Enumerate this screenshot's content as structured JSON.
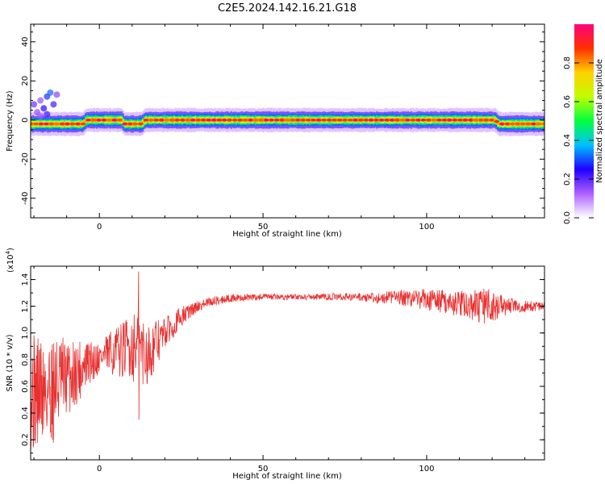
{
  "figure": {
    "title": "C2E5.2024.142.16.21.G18"
  },
  "chart_data": [
    {
      "type": "heatmap",
      "xlabel": "Height of straight line (km)",
      "ylabel": "Frequency (Hz)",
      "xlim": [
        -21,
        136
      ],
      "ylim": [
        -50,
        49
      ],
      "xticks": [
        0,
        50,
        100
      ],
      "yticks": [
        -40,
        -20,
        0,
        20,
        40
      ],
      "grid": false,
      "colorbar": {
        "label": "Normalized spectral amplitude",
        "range": [
          0,
          1
        ],
        "ticks": [
          "0.0",
          "0.2",
          "0.4",
          "0.6",
          "0.8"
        ],
        "colormap": [
          "#ffffff",
          "#b060ff",
          "#2000ff",
          "#00c0ff",
          "#00ff40",
          "#c0ff00",
          "#ffd000",
          "#ff3000",
          "#ff0080"
        ]
      },
      "ridge": {
        "description_frequency_hz_vs_height_km": [
          [
            -21,
            -2
          ],
          [
            -5,
            -2
          ],
          [
            -4,
            0
          ],
          [
            7,
            0
          ],
          [
            7.5,
            -2
          ],
          [
            13,
            -2
          ],
          [
            14,
            0
          ],
          [
            121,
            0
          ],
          [
            122,
            -2
          ],
          [
            136,
            -2
          ]
        ],
        "peak_amplitude": 1.0
      },
      "scatter_blob": [
        [
          -20,
          8
        ],
        [
          -19,
          4
        ],
        [
          -18,
          10
        ],
        [
          -17,
          6
        ],
        [
          -16,
          12
        ],
        [
          -15,
          14
        ],
        [
          -14,
          8
        ],
        [
          -13,
          13
        ],
        [
          -18,
          2
        ],
        [
          -16,
          3
        ]
      ]
    },
    {
      "type": "line",
      "xlabel": "Height of straight line (km)",
      "ylabel": "SNR (10 * v/v)",
      "multiplier": "(x10",
      "multiplier_exp": "4",
      "multiplier_close": ")",
      "xlim": [
        -21,
        136
      ],
      "ylim": [
        0.05,
        1.5
      ],
      "xticks": [
        0,
        50,
        100
      ],
      "yticks": [
        0.2,
        0.4,
        0.6,
        0.8,
        1.0,
        1.2,
        1.4
      ],
      "ytick_labels": [
        "0.2",
        "0.4",
        "0.6",
        "0.8",
        "1.0",
        "1.2",
        "1.4"
      ],
      "color": "#e83030",
      "grid": false,
      "trend": [
        [
          -21,
          0.55
        ],
        [
          -15,
          0.58
        ],
        [
          -10,
          0.66
        ],
        [
          -5,
          0.74
        ],
        [
          0,
          0.82
        ],
        [
          5,
          0.86
        ],
        [
          10,
          0.9
        ],
        [
          15,
          0.85
        ],
        [
          20,
          1.0
        ],
        [
          25,
          1.12
        ],
        [
          30,
          1.2
        ],
        [
          35,
          1.24
        ],
        [
          40,
          1.26
        ],
        [
          50,
          1.27
        ],
        [
          60,
          1.27
        ],
        [
          70,
          1.27
        ],
        [
          80,
          1.27
        ],
        [
          85,
          1.26
        ],
        [
          90,
          1.27
        ],
        [
          100,
          1.25
        ],
        [
          110,
          1.22
        ],
        [
          115,
          1.2
        ],
        [
          120,
          1.2
        ],
        [
          125,
          1.2
        ],
        [
          130,
          1.2
        ],
        [
          136,
          1.2
        ]
      ],
      "noise_amplitude": [
        [
          -21,
          0.45
        ],
        [
          -15,
          0.45
        ],
        [
          -10,
          0.3
        ],
        [
          0,
          0.12
        ],
        [
          8,
          0.22
        ],
        [
          12,
          0.3
        ],
        [
          20,
          0.12
        ],
        [
          30,
          0.04
        ],
        [
          40,
          0.03
        ],
        [
          60,
          0.02
        ],
        [
          80,
          0.03
        ],
        [
          90,
          0.05
        ],
        [
          100,
          0.08
        ],
        [
          110,
          0.1
        ],
        [
          118,
          0.14
        ],
        [
          125,
          0.06
        ],
        [
          136,
          0.03
        ]
      ],
      "peak": [
        12,
        1.46
      ],
      "dip": [
        12,
        0.35
      ]
    }
  ]
}
